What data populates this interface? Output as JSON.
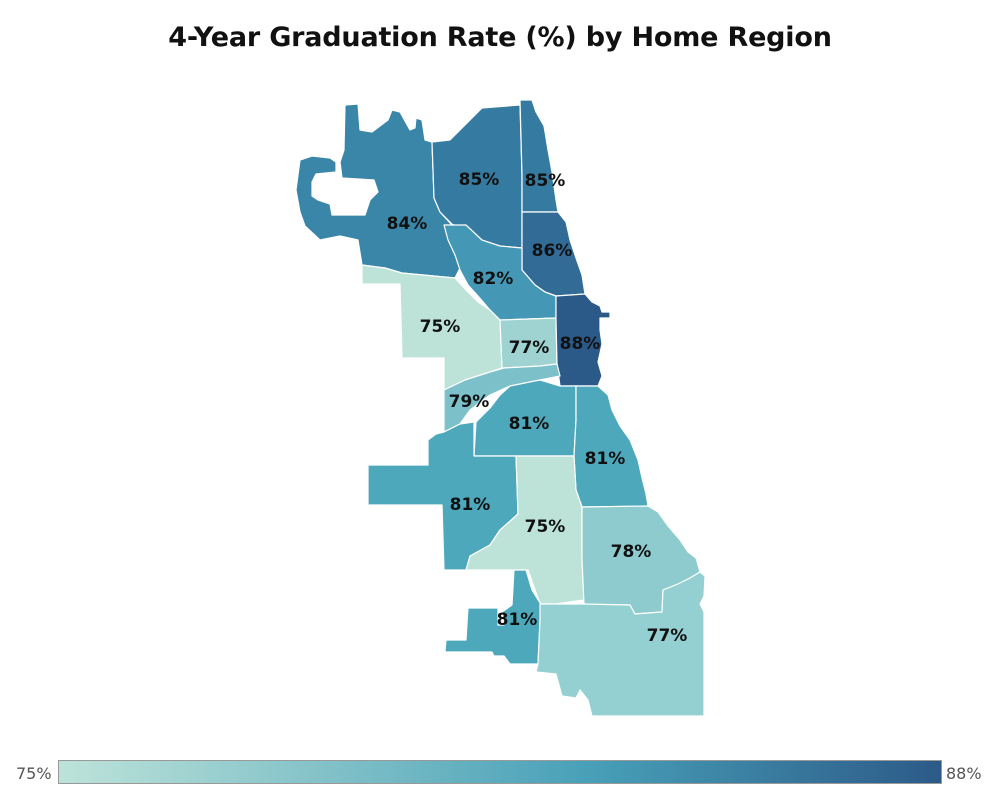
{
  "title": "4-Year Graduation Rate (%) by Home Region",
  "legend": {
    "min_label": "75%",
    "max_label": "88%",
    "min_color": "#bde3d9",
    "mid_color": "#48a0b8",
    "max_color": "#2c5a88"
  },
  "regions": [
    {
      "id": "far-northwest",
      "rate": 84,
      "label": "84%",
      "color": "#3a86a8"
    },
    {
      "id": "north-central",
      "rate": 85,
      "label": "85%",
      "color": "#357aa0"
    },
    {
      "id": "far-north-lakeshore",
      "rate": 85,
      "label": "85%",
      "color": "#357aa0"
    },
    {
      "id": "north-lakeshore",
      "rate": 86,
      "label": "86%",
      "color": "#326b96"
    },
    {
      "id": "north-river",
      "rate": 82,
      "label": "82%",
      "color": "#4497b5"
    },
    {
      "id": "west-northwest",
      "rate": 75,
      "label": "75%",
      "color": "#bde3d9"
    },
    {
      "id": "near-north-west",
      "rate": 77,
      "label": "77%",
      "color": "#9ed3d2"
    },
    {
      "id": "central-lakeshore",
      "rate": 88,
      "label": "88%",
      "color": "#2c5a88"
    },
    {
      "id": "west-side",
      "rate": 79,
      "label": "79%",
      "color": "#7cc0ca"
    },
    {
      "id": "near-south-west",
      "rate": 81,
      "label": "81%",
      "color": "#4da8bc"
    },
    {
      "id": "south-lakeshore",
      "rate": 81,
      "label": "81%",
      "color": "#4da8bc"
    },
    {
      "id": "southwest",
      "rate": 81,
      "label": "81%",
      "color": "#4da8bc"
    },
    {
      "id": "south-central",
      "rate": 75,
      "label": "75%",
      "color": "#bde3d9"
    },
    {
      "id": "south-east",
      "rate": 78,
      "label": "78%",
      "color": "#8ecbcf"
    },
    {
      "id": "far-southwest",
      "rate": 81,
      "label": "81%",
      "color": "#4da8bc"
    },
    {
      "id": "far-south",
      "rate": 77,
      "label": "77%",
      "color": "#94cfd1"
    }
  ]
}
